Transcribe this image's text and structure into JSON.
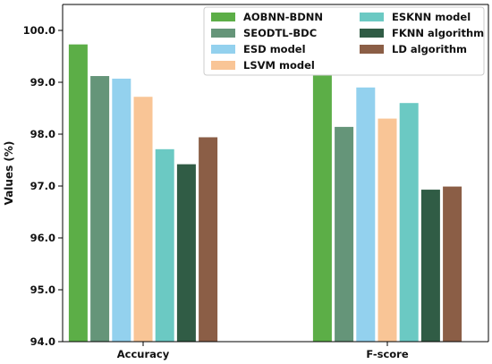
{
  "chart_data": {
    "type": "bar",
    "categories": [
      "Accuracy",
      "F-score"
    ],
    "ylabel": "Values (%)",
    "xlabel": "",
    "ylim": [
      94.0,
      100.5
    ],
    "yticks": [
      "94.0",
      "95.0",
      "96.0",
      "97.0",
      "98.0",
      "99.0",
      "100.0"
    ],
    "grid": false,
    "legend_position": "top-right",
    "series": [
      {
        "name": "AOBNN-BDNN",
        "color": "#5cae47",
        "values": [
          99.73,
          99.65
        ]
      },
      {
        "name": "SEODTL-BDC",
        "color": "#659579",
        "values": [
          99.12,
          98.14
        ]
      },
      {
        "name": "ESD model",
        "color": "#93d1ee",
        "values": [
          99.07,
          98.9
        ]
      },
      {
        "name": "LSVM model",
        "color": "#f9c596",
        "values": [
          98.72,
          98.3
        ]
      },
      {
        "name": "ESKNN model",
        "color": "#6bc9c3",
        "values": [
          97.71,
          98.6
        ]
      },
      {
        "name": "FKNN algorithm",
        "color": "#305c45",
        "values": [
          97.42,
          96.93
        ]
      },
      {
        "name": "LD algorithm",
        "color": "#8b5e46",
        "values": [
          97.94,
          96.99
        ]
      }
    ]
  }
}
